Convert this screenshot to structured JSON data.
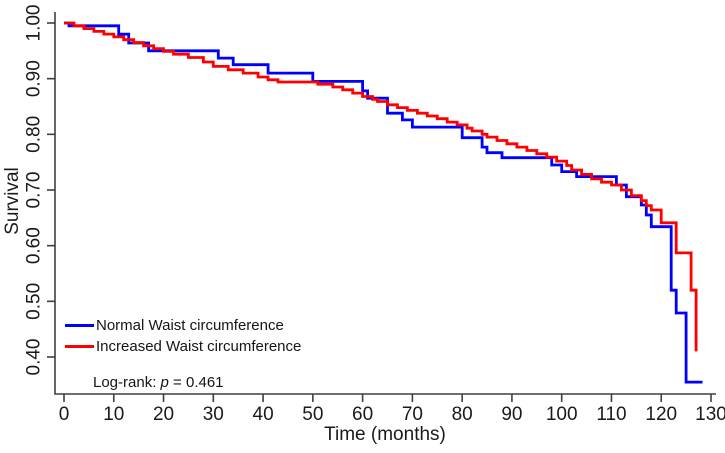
{
  "chart_data": {
    "type": "line",
    "subtype": "kaplan-meier-step",
    "title": "",
    "xlabel": "Time (months)",
    "ylabel": "Survival",
    "xlim": [
      0,
      130
    ],
    "ylim": [
      0.4,
      1.0
    ],
    "grid": false,
    "legend_position": "inside-bottom-left",
    "xticks": [
      {
        "value": 0,
        "label": "0"
      },
      {
        "value": 10,
        "label": "10"
      },
      {
        "value": 20,
        "label": "20"
      },
      {
        "value": 30,
        "label": "30"
      },
      {
        "value": 40,
        "label": "40"
      },
      {
        "value": 50,
        "label": "50"
      },
      {
        "value": 60,
        "label": "60"
      },
      {
        "value": 70,
        "label": "70"
      },
      {
        "value": 80,
        "label": "80"
      },
      {
        "value": 90,
        "label": "90"
      },
      {
        "value": 100,
        "label": "100"
      },
      {
        "value": 110,
        "label": "110"
      },
      {
        "value": 120,
        "label": "120"
      },
      {
        "value": 130,
        "label": "130"
      }
    ],
    "yticks": [
      {
        "value": 1.0,
        "label": "1.00"
      },
      {
        "value": 0.9,
        "label": "0.90"
      },
      {
        "value": 0.8,
        "label": "0.80"
      },
      {
        "value": 0.7,
        "label": "0.70"
      },
      {
        "value": 0.6,
        "label": "0.60"
      },
      {
        "value": 0.5,
        "label": "0.50"
      },
      {
        "value": 0.4,
        "label": "0.40"
      }
    ],
    "annotation": {
      "prefix": "Log-rank: ",
      "stat": "p",
      "suffix": " = 0.461"
    },
    "axis_color": "#3f3f3f",
    "text_color": "#1a1a1a",
    "series": [
      {
        "name": "Normal Waist circumference",
        "color": "#0000ff",
        "points": [
          [
            0,
            1.0
          ],
          [
            1,
            0.995
          ],
          [
            11,
            0.98
          ],
          [
            13,
            0.964
          ],
          [
            17,
            0.95
          ],
          [
            31,
            0.937
          ],
          [
            34,
            0.925
          ],
          [
            41,
            0.91
          ],
          [
            50,
            0.895
          ],
          [
            60,
            0.878
          ],
          [
            61,
            0.865
          ],
          [
            65,
            0.838
          ],
          [
            68,
            0.826
          ],
          [
            70,
            0.813
          ],
          [
            80,
            0.794
          ],
          [
            84,
            0.777
          ],
          [
            85,
            0.767
          ],
          [
            88,
            0.758
          ],
          [
            98,
            0.745
          ],
          [
            100,
            0.733
          ],
          [
            103,
            0.724
          ],
          [
            111,
            0.709
          ],
          [
            113,
            0.688
          ],
          [
            116,
            0.673
          ],
          [
            117,
            0.655
          ],
          [
            118,
            0.634
          ],
          [
            122,
            0.52
          ],
          [
            123,
            0.479
          ],
          [
            125,
            0.355
          ],
          [
            128.3,
            0.355
          ]
        ]
      },
      {
        "name": "Increased Waist circumference",
        "color": "#ff0000",
        "points": [
          [
            0,
            1.0
          ],
          [
            2,
            0.995
          ],
          [
            4,
            0.99
          ],
          [
            6,
            0.985
          ],
          [
            8,
            0.98
          ],
          [
            10,
            0.975
          ],
          [
            12,
            0.97
          ],
          [
            14,
            0.965
          ],
          [
            16,
            0.959
          ],
          [
            18,
            0.954
          ],
          [
            20,
            0.949
          ],
          [
            22,
            0.944
          ],
          [
            25,
            0.938
          ],
          [
            28,
            0.93
          ],
          [
            30,
            0.922
          ],
          [
            33,
            0.916
          ],
          [
            36,
            0.91
          ],
          [
            39,
            0.903
          ],
          [
            41,
            0.898
          ],
          [
            43,
            0.894
          ],
          [
            51,
            0.89
          ],
          [
            54,
            0.885
          ],
          [
            56,
            0.88
          ],
          [
            58,
            0.874
          ],
          [
            60,
            0.868
          ],
          [
            62,
            0.863
          ],
          [
            63,
            0.859
          ],
          [
            65,
            0.853
          ],
          [
            67,
            0.848
          ],
          [
            69,
            0.843
          ],
          [
            71,
            0.838
          ],
          [
            73,
            0.833
          ],
          [
            75,
            0.828
          ],
          [
            77,
            0.822
          ],
          [
            79,
            0.817
          ],
          [
            81,
            0.811
          ],
          [
            82,
            0.806
          ],
          [
            84,
            0.8
          ],
          [
            85,
            0.795
          ],
          [
            87,
            0.789
          ],
          [
            89,
            0.783
          ],
          [
            91,
            0.777
          ],
          [
            93,
            0.771
          ],
          [
            95,
            0.765
          ],
          [
            97,
            0.759
          ],
          [
            99,
            0.752
          ],
          [
            101,
            0.744
          ],
          [
            102,
            0.736
          ],
          [
            104,
            0.728
          ],
          [
            106,
            0.72
          ],
          [
            108,
            0.714
          ],
          [
            110,
            0.709
          ],
          [
            112,
            0.7
          ],
          [
            114,
            0.69
          ],
          [
            116,
            0.681
          ],
          [
            117,
            0.672
          ],
          [
            118,
            0.664
          ],
          [
            120,
            0.641
          ],
          [
            123,
            0.587
          ],
          [
            126,
            0.52
          ],
          [
            127,
            0.41
          ]
        ]
      }
    ]
  }
}
